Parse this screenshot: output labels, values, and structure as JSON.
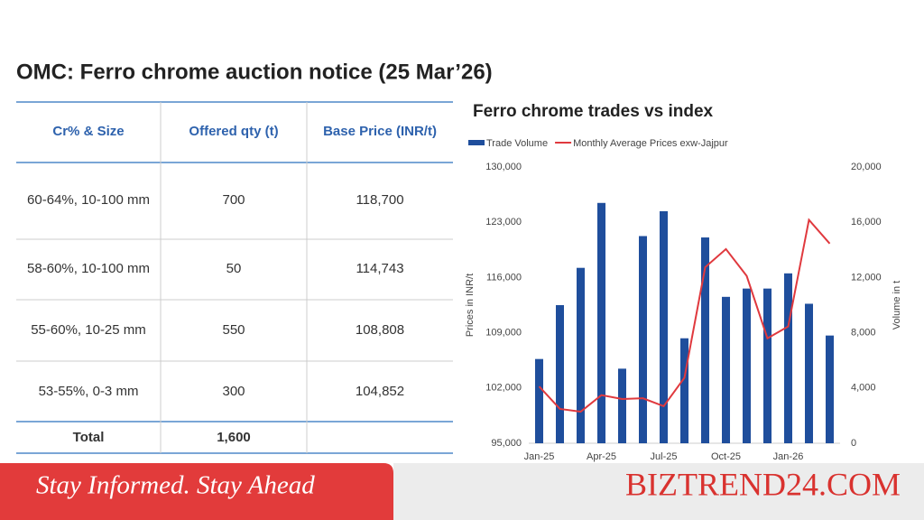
{
  "page_title": "OMC: Ferro chrome auction notice (25 Mar’26)",
  "table": {
    "headers": [
      "Cr% & Size",
      "Offered qty (t)",
      "Base Price (INR/t)"
    ],
    "rows": [
      [
        "60-64%, 10-100 mm",
        "700",
        "118,700"
      ],
      [
        "58-60%, 10-100 mm",
        "50",
        "114,743"
      ],
      [
        "55-60%, 10-25 mm",
        "550",
        "108,808"
      ],
      [
        "53-55%, 0-3 mm",
        "300",
        "104,852"
      ]
    ],
    "total": [
      "Total",
      "1,600"
    ]
  },
  "chart_data": {
    "type": "bar-line",
    "title": "Ferro chrome trades vs index",
    "y_label": "Prices in INR/t",
    "y2_label": "Volume in t",
    "categories": [
      "Jan-25",
      null,
      null,
      "Apr-25",
      null,
      null,
      "Jul-25",
      null,
      null,
      "Oct-25",
      null,
      null,
      "Jan-26",
      null,
      null
    ],
    "series": [
      {
        "name": "Trade Volume",
        "type": "bar",
        "axis": "y2",
        "color": "#1f4e9c",
        "values": [
          6100,
          10000,
          12700,
          17400,
          5400,
          15000,
          16800,
          7600,
          14900,
          10600,
          11200,
          11200,
          12300,
          10100,
          7800
        ]
      },
      {
        "name": "Monthly Average Prices exw-Jajpur",
        "type": "line",
        "color": "#e0393e",
        "values": [
          102200,
          99350,
          99000,
          101100,
          100600,
          100700,
          99700,
          103300,
          117300,
          119600,
          116200,
          108300,
          109800,
          123300,
          120300
        ]
      }
    ],
    "ylim": [
      95000,
      130000
    ],
    "yticks": [
      {
        "value": 95000,
        "label": "95,000"
      },
      {
        "value": 102000,
        "label": "102,000"
      },
      {
        "value": 109000,
        "label": "109,000"
      },
      {
        "value": 116000,
        "label": "116,000"
      },
      {
        "value": 123000,
        "label": "123,000"
      },
      {
        "value": 130000,
        "label": "130,000"
      }
    ],
    "y2lim": [
      0,
      20000
    ],
    "y2ticks": [
      0,
      {
        "value": 4000,
        "label": "4,000"
      },
      {
        "value": 8000,
        "label": "8,000"
      },
      {
        "value": 12000,
        "label": "12,000"
      },
      {
        "value": 16000,
        "label": "16,000"
      },
      {
        "value": 20000,
        "label": "20,000"
      }
    ],
    "grid": false
  },
  "banner": {
    "tagline": "Stay Informed. Stay Ahead",
    "brand": "BIZTREND24.COM"
  }
}
